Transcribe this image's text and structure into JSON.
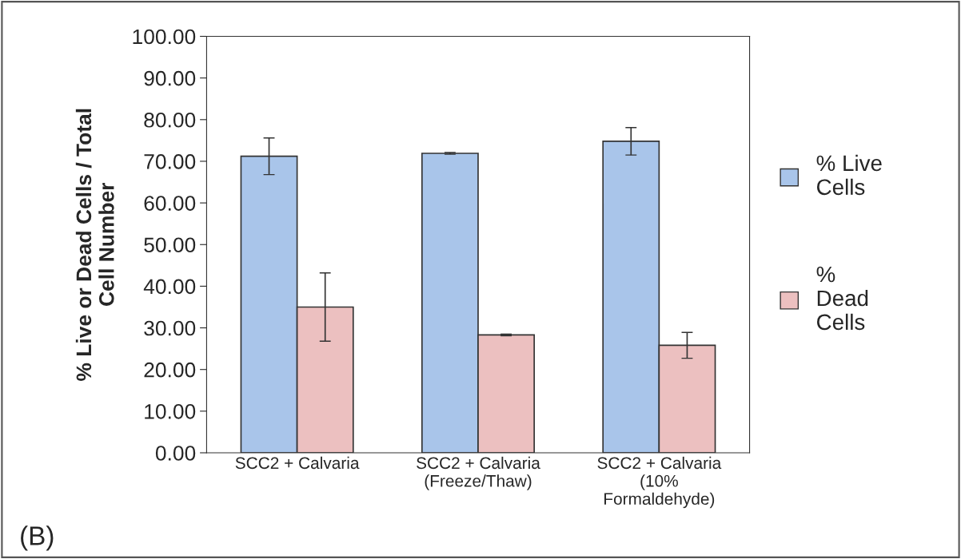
{
  "chart_data": {
    "type": "bar",
    "ylabel": "% Live or Dead Cells / Total\nCell Number",
    "categories": [
      "SCC2 + Calvaria",
      "SCC2 + Calvaria\n(Freeze/Thaw)",
      "SCC2 + Calvaria\n(10%\nFormaldehyde)"
    ],
    "series": [
      {
        "name": "% Live\nCells",
        "color": "#a9c5ea",
        "values": [
          71.2,
          71.9,
          74.8
        ],
        "errors": [
          4.4,
          0.2,
          3.3
        ]
      },
      {
        "name": "%\nDead\nCells",
        "color": "#ecc0c0",
        "values": [
          35.0,
          28.3,
          25.8
        ],
        "errors": [
          8.2,
          0.2,
          3.1
        ]
      }
    ],
    "ylim": [
      0,
      100
    ],
    "yticks": [
      {
        "value": 0,
        "label": "0.00"
      },
      {
        "value": 10,
        "label": "10.00"
      },
      {
        "value": 20,
        "label": "20.00"
      },
      {
        "value": 30,
        "label": "30.00"
      },
      {
        "value": 40,
        "label": "40.00"
      },
      {
        "value": 50,
        "label": "50.00"
      },
      {
        "value": 60,
        "label": "60.00"
      },
      {
        "value": 70,
        "label": "70.00"
      },
      {
        "value": 80,
        "label": "80.00"
      },
      {
        "value": 90,
        "label": "90.00"
      },
      {
        "value": 100,
        "label": "100.00"
      }
    ],
    "grid": false,
    "legend": "right",
    "annotations": [
      "(B)"
    ]
  }
}
